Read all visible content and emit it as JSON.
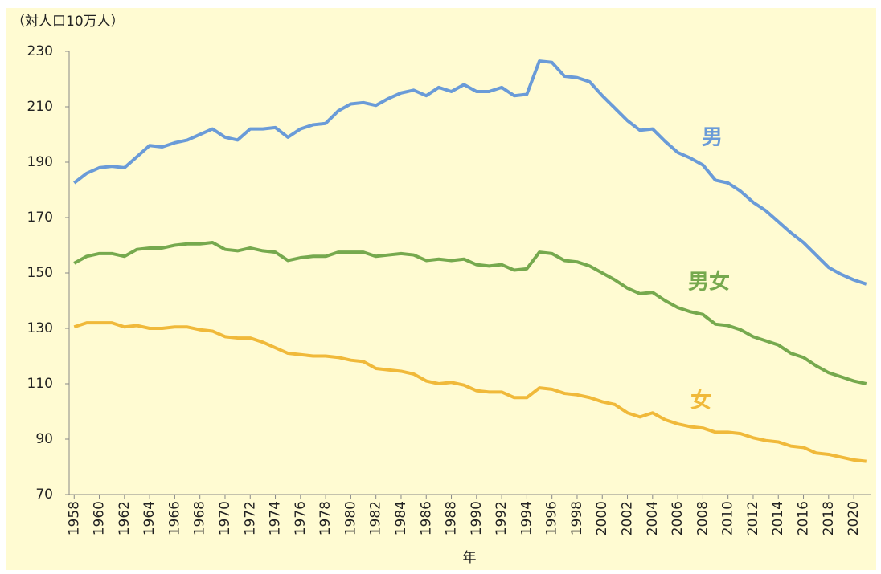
{
  "chart_data": {
    "type": "line",
    "y_label": "（対人口10万人）",
    "x_label": "年",
    "x": [
      1958,
      1959,
      1960,
      1961,
      1962,
      1963,
      1964,
      1965,
      1966,
      1967,
      1968,
      1969,
      1970,
      1971,
      1972,
      1973,
      1974,
      1975,
      1976,
      1977,
      1978,
      1979,
      1980,
      1981,
      1982,
      1983,
      1984,
      1985,
      1986,
      1987,
      1988,
      1989,
      1990,
      1991,
      1992,
      1993,
      1994,
      1995,
      1996,
      1997,
      1998,
      1999,
      2000,
      2001,
      2002,
      2003,
      2004,
      2005,
      2006,
      2007,
      2008,
      2009,
      2010,
      2011,
      2012,
      2013,
      2014,
      2015,
      2016,
      2017,
      2018,
      2019,
      2020,
      2021
    ],
    "series": [
      {
        "name": "男",
        "color": "#6a9bd8",
        "values": [
          182.5,
          186,
          188,
          188.5,
          188,
          192,
          196,
          195.5,
          197,
          198,
          200,
          202,
          199,
          198,
          202,
          202,
          202.5,
          199,
          202,
          203.5,
          204,
          208.5,
          211,
          211.5,
          210.5,
          213,
          215,
          216,
          214,
          217,
          215.5,
          218,
          215.5,
          215.5,
          217,
          214,
          214.5,
          226.5,
          226,
          221,
          220.5,
          219,
          214,
          209.5,
          205,
          201.5,
          202,
          197.5,
          193.5,
          191.5,
          189,
          183.5,
          182.5,
          179.5,
          175.5,
          172.5,
          168.5,
          164.5,
          161,
          156.5,
          152,
          149.5,
          147.5,
          146
        ]
      },
      {
        "name": "男女",
        "color": "#76a94e",
        "values": [
          153.5,
          156,
          157,
          157,
          156,
          158.5,
          159,
          159,
          160,
          160.5,
          160.5,
          161,
          158.5,
          158,
          159,
          158,
          157.5,
          154.5,
          155.5,
          156,
          156,
          157.5,
          157.5,
          157.5,
          156,
          156.5,
          157,
          156.5,
          154.5,
          155,
          154.5,
          155,
          153,
          152.5,
          153,
          151,
          151.5,
          157.5,
          157,
          154.5,
          154,
          152.5,
          150,
          147.5,
          144.5,
          142.5,
          143,
          140,
          137.5,
          136,
          135,
          131.5,
          131,
          129.5,
          127,
          125.5,
          124,
          121,
          119.5,
          116.5,
          114,
          112.5,
          111,
          110
        ]
      },
      {
        "name": "女",
        "color": "#f0b93a",
        "values": [
          130.5,
          132,
          132,
          132,
          130.5,
          131,
          130,
          130,
          130.5,
          130.5,
          129.5,
          129,
          127,
          126.5,
          126.5,
          125,
          123,
          121,
          120.5,
          120,
          120,
          119.5,
          118.5,
          118,
          115.5,
          115,
          114.5,
          113.5,
          111,
          110,
          110.5,
          109.5,
          107.5,
          107,
          107,
          105,
          105,
          108.5,
          108,
          106.5,
          106,
          105,
          103.5,
          102.5,
          99.5,
          98,
          99.5,
          97,
          95.5,
          94.5,
          94,
          92.5,
          92.5,
          92,
          90.5,
          89.5,
          89,
          87.5,
          87,
          85,
          84.5,
          83.5,
          82.5,
          82
        ]
      }
    ],
    "xlim": [
      1957.6,
      2021.4
    ],
    "xticks": [
      1958,
      1960,
      1962,
      1964,
      1966,
      1968,
      1970,
      1972,
      1974,
      1976,
      1978,
      1980,
      1982,
      1984,
      1986,
      1988,
      1990,
      1992,
      1994,
      1996,
      1998,
      2000,
      2002,
      2004,
      2006,
      2008,
      2010,
      2012,
      2014,
      2016,
      2018,
      2020
    ],
    "ylim": [
      70,
      230
    ],
    "yticks": [
      70,
      90,
      110,
      130,
      150,
      170,
      190,
      210,
      230
    ]
  }
}
